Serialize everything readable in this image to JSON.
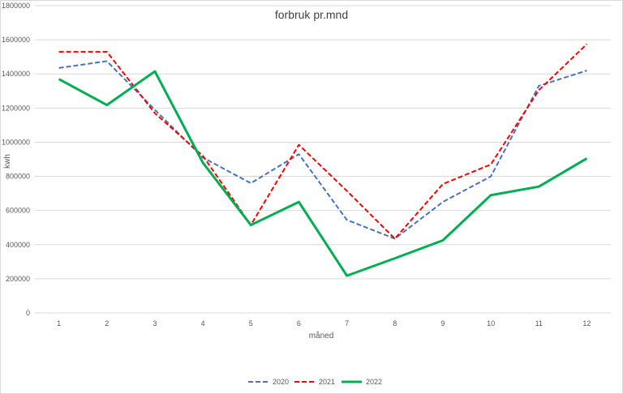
{
  "chart_data": {
    "type": "line",
    "title": "forbruk pr.mnd",
    "xlabel": "måned",
    "ylabel": "kwh",
    "categories": [
      "1",
      "2",
      "3",
      "4",
      "5",
      "6",
      "7",
      "8",
      "9",
      "10",
      "11",
      "12"
    ],
    "ylim": [
      0,
      1800000
    ],
    "yticks": [
      0,
      200000,
      400000,
      600000,
      800000,
      1000000,
      1200000,
      1400000,
      1600000,
      1800000
    ],
    "grid": true,
    "legend_position": "bottom",
    "series": [
      {
        "name": "2020",
        "color": "#4472c4",
        "style": "dashed",
        "values": [
          1435000,
          1475000,
          1190000,
          910000,
          760000,
          930000,
          545000,
          435000,
          650000,
          800000,
          1330000,
          1420000
        ]
      },
      {
        "name": "2021",
        "color": "#ff0000",
        "style": "dashed",
        "values": [
          1530000,
          1530000,
          1170000,
          920000,
          515000,
          985000,
          715000,
          435000,
          755000,
          870000,
          1305000,
          1575000
        ]
      },
      {
        "name": "2022",
        "color": "#00b050",
        "style": "solid",
        "values": [
          1370000,
          1218000,
          1415000,
          880000,
          515000,
          650000,
          218000,
          320000,
          425000,
          690000,
          740000,
          905000
        ]
      }
    ]
  }
}
